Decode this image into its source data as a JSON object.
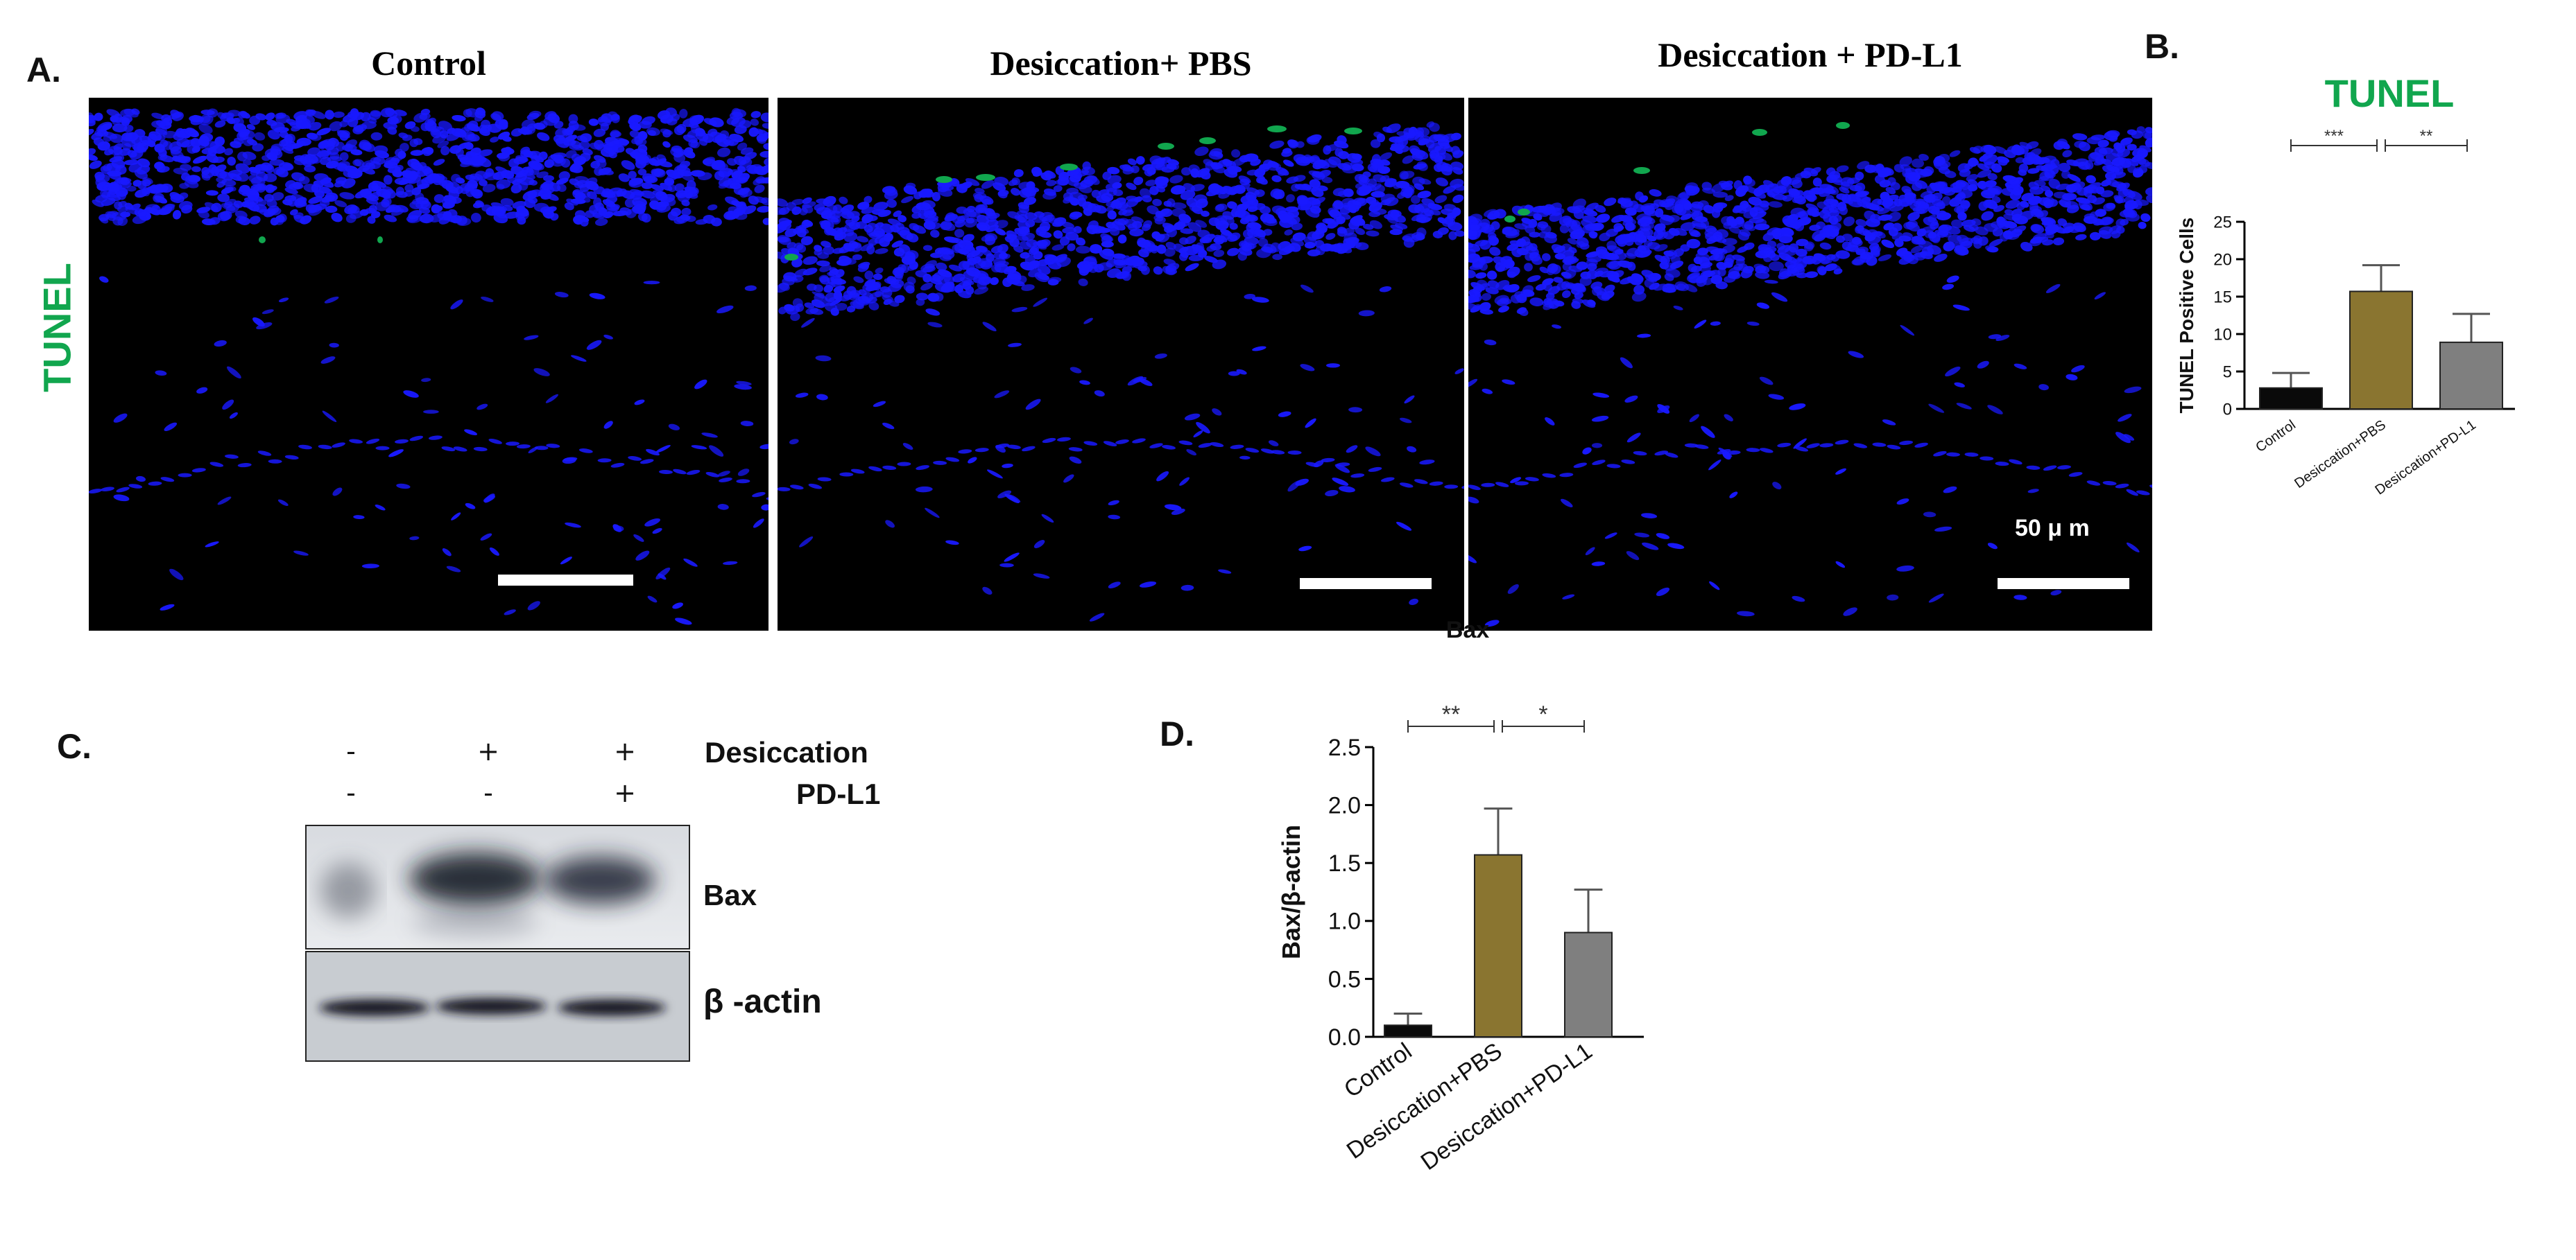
{
  "panel_a": {
    "letter": "A.",
    "side_label": "TUNEL",
    "images": [
      {
        "title": "Control"
      },
      {
        "title": "Desiccation+ PBS"
      },
      {
        "title": "Desiccation + PD-L1",
        "scale_label": "50 μ m"
      }
    ]
  },
  "panel_b": {
    "letter": "B."
  },
  "panel_c": {
    "letter": "C.",
    "rows": [
      {
        "label": "Desiccation",
        "signs": [
          "-",
          "+",
          "+"
        ]
      },
      {
        "label": "PD-L1",
        "signs": [
          "-",
          "-",
          "+"
        ]
      }
    ],
    "bands": [
      {
        "label": "Bax"
      },
      {
        "label": "β -actin"
      }
    ]
  },
  "panel_d": {
    "letter": "D."
  },
  "colors": {
    "control": "#0a0a0a",
    "pbs": "#8a7530",
    "pdl1": "#7f7f7f",
    "tunel_green": "#11a64e",
    "nuclei_blue": "#1919ff"
  },
  "chart_data": [
    {
      "type": "bar",
      "title": "TUNEL",
      "ylabel": "TUNEL Positive Cells",
      "categories": [
        "Control",
        "Desiccation+PBS",
        "Desiccation+PD-L1"
      ],
      "values": [
        2.8,
        15.7,
        8.9
      ],
      "errors": [
        2.0,
        3.5,
        3.8
      ],
      "ylim": [
        0,
        25
      ],
      "yticks": [
        0,
        5,
        10,
        15,
        20,
        25
      ],
      "significance": [
        {
          "from": 0,
          "to": 1,
          "label": "***"
        },
        {
          "from": 1,
          "to": 2,
          "label": "**"
        }
      ]
    },
    {
      "type": "bar",
      "title": "Bax",
      "ylabel": "Bax/β-actin",
      "categories": [
        "Control",
        "Desiccation+PBS",
        "Desiccation+PD-L1"
      ],
      "values": [
        0.1,
        1.57,
        0.9
      ],
      "errors": [
        0.1,
        0.4,
        0.37
      ],
      "ylim": [
        0,
        2.5
      ],
      "yticks": [
        "0.0",
        "0.5",
        "1.0",
        "1.5",
        "2.0",
        "2.5"
      ],
      "significance": [
        {
          "from": 0,
          "to": 1,
          "label": "**"
        },
        {
          "from": 1,
          "to": 2,
          "label": "*"
        }
      ]
    }
  ]
}
